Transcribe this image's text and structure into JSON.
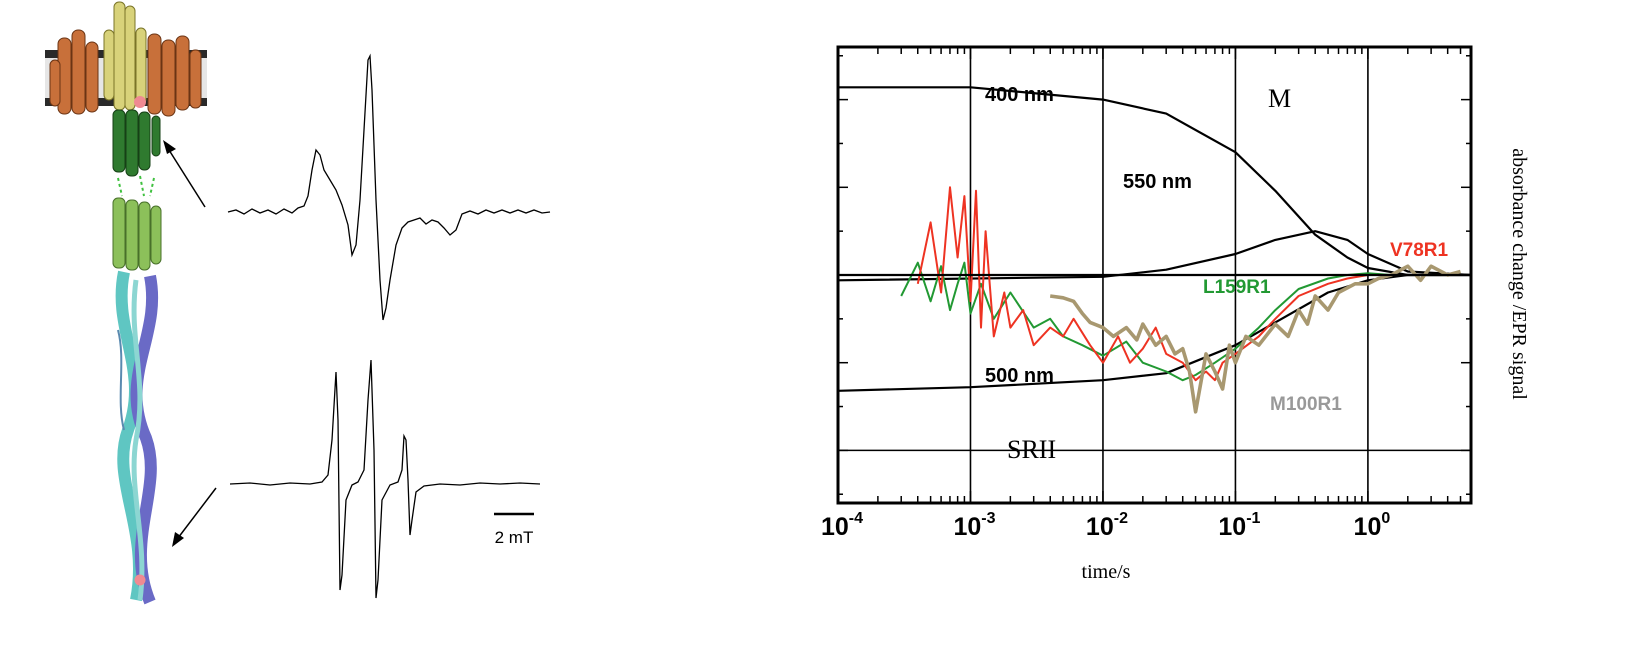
{
  "left_panel": {
    "scale_bar_label": "2 mT"
  },
  "chart_data": {
    "type": "line",
    "xlabel": "time/s",
    "ylabel": "absorbance change /EPR signal",
    "x_scale": "log",
    "xlim": [
      0.0001,
      6
    ],
    "ylim": [
      -1.3,
      1.3
    ],
    "grid": true,
    "x_ticks": [
      {
        "value": 0.0001,
        "base": "10",
        "exp": "-4"
      },
      {
        "value": 0.001,
        "base": "10",
        "exp": "-3"
      },
      {
        "value": 0.01,
        "base": "10",
        "exp": "-2"
      },
      {
        "value": 0.1,
        "base": "10",
        "exp": "-1"
      },
      {
        "value": 1,
        "base": "10",
        "exp": "0"
      }
    ],
    "annotations": [
      {
        "text": "400 nm",
        "style": "bold"
      },
      {
        "text": "550 nm",
        "style": "bold"
      },
      {
        "text": "500 nm",
        "style": "bold"
      },
      {
        "text": "M",
        "style": "serif"
      },
      {
        "text": "SRII",
        "style": "serif"
      }
    ],
    "series": [
      {
        "name": "",
        "color": "#000000",
        "x": [
          0.0001,
          0.001,
          0.01,
          0.03,
          0.1,
          0.2,
          0.4,
          0.7,
          1,
          2,
          6
        ],
        "y": [
          1.07,
          1.07,
          1.0,
          0.92,
          0.7,
          0.48,
          0.23,
          0.1,
          0.04,
          0.0,
          0.0
        ]
      },
      {
        "name": "",
        "color": "#000000",
        "x": [
          0.0001,
          0.01,
          0.03,
          0.1,
          0.2,
          0.4,
          0.7,
          1,
          2,
          6
        ],
        "y": [
          -0.03,
          -0.01,
          0.03,
          0.12,
          0.2,
          0.25,
          0.2,
          0.12,
          0.02,
          0.0
        ]
      },
      {
        "name": "",
        "color": "#000000",
        "x": [
          0.0001,
          0.001,
          0.01,
          0.03,
          0.1,
          0.2,
          0.5,
          1,
          2,
          6
        ],
        "y": [
          -0.66,
          -0.64,
          -0.6,
          -0.56,
          -0.4,
          -0.27,
          -0.1,
          -0.03,
          0.0,
          0.0
        ]
      },
      {
        "name": "L159R1",
        "color": "#229933",
        "x": [
          0.0003,
          0.0004,
          0.0005,
          0.0006,
          0.0007,
          0.0008,
          0.0009,
          0.001,
          0.0012,
          0.0015,
          0.002,
          0.003,
          0.004,
          0.005,
          0.007,
          0.01,
          0.015,
          0.02,
          0.03,
          0.04,
          0.05,
          0.07,
          0.1,
          0.15,
          0.2,
          0.3,
          0.5,
          0.7,
          1,
          1.5,
          2,
          3,
          5
        ],
        "y": [
          -0.12,
          0.07,
          -0.15,
          0.05,
          -0.2,
          -0.05,
          0.07,
          -0.22,
          -0.05,
          -0.25,
          -0.1,
          -0.3,
          -0.25,
          -0.35,
          -0.4,
          -0.46,
          -0.38,
          -0.5,
          -0.55,
          -0.6,
          -0.57,
          -0.5,
          -0.42,
          -0.3,
          -0.2,
          -0.08,
          -0.02,
          0.0,
          0.01,
          0.0,
          0.0,
          0.0,
          0.0
        ]
      },
      {
        "name": "V78R1",
        "color": "#ee3322",
        "x": [
          0.0004,
          0.0005,
          0.0006,
          0.0007,
          0.0008,
          0.0009,
          0.001,
          0.0011,
          0.0012,
          0.0013,
          0.0015,
          0.0018,
          0.002,
          0.0025,
          0.003,
          0.004,
          0.005,
          0.006,
          0.008,
          0.01,
          0.013,
          0.016,
          0.02,
          0.025,
          0.03,
          0.04,
          0.05,
          0.06,
          0.07,
          0.08,
          0.1,
          0.15,
          0.2,
          0.3,
          0.5,
          0.7,
          1,
          1.5,
          2,
          3,
          5
        ],
        "y": [
          -0.05,
          0.3,
          -0.1,
          0.5,
          0.1,
          0.45,
          -0.15,
          0.48,
          -0.3,
          0.25,
          -0.35,
          -0.1,
          -0.3,
          -0.2,
          -0.4,
          -0.3,
          -0.35,
          -0.25,
          -0.4,
          -0.5,
          -0.35,
          -0.5,
          -0.42,
          -0.3,
          -0.45,
          -0.5,
          -0.6,
          -0.55,
          -0.6,
          -0.5,
          -0.45,
          -0.35,
          -0.25,
          -0.12,
          -0.05,
          -0.02,
          0.0,
          0.0,
          0.0,
          0.0,
          0.0
        ]
      },
      {
        "name": "M100R1",
        "color": "#a89870",
        "x": [
          0.004,
          0.005,
          0.006,
          0.007,
          0.008,
          0.01,
          0.012,
          0.015,
          0.018,
          0.02,
          0.025,
          0.03,
          0.035,
          0.04,
          0.045,
          0.05,
          0.06,
          0.07,
          0.08,
          0.09,
          0.1,
          0.12,
          0.15,
          0.2,
          0.25,
          0.3,
          0.35,
          0.4,
          0.5,
          0.6,
          0.8,
          1,
          1.2,
          1.5,
          2,
          2.5,
          3,
          4,
          5
        ],
        "y": [
          -0.12,
          -0.13,
          -0.15,
          -0.22,
          -0.27,
          -0.3,
          -0.35,
          -0.3,
          -0.37,
          -0.28,
          -0.4,
          -0.35,
          -0.45,
          -0.42,
          -0.55,
          -0.78,
          -0.45,
          -0.55,
          -0.65,
          -0.4,
          -0.5,
          -0.35,
          -0.4,
          -0.28,
          -0.35,
          -0.2,
          -0.28,
          -0.12,
          -0.2,
          -0.1,
          -0.05,
          -0.05,
          -0.02,
          0.0,
          0.05,
          -0.03,
          0.05,
          0.0,
          0.02
        ]
      }
    ]
  }
}
